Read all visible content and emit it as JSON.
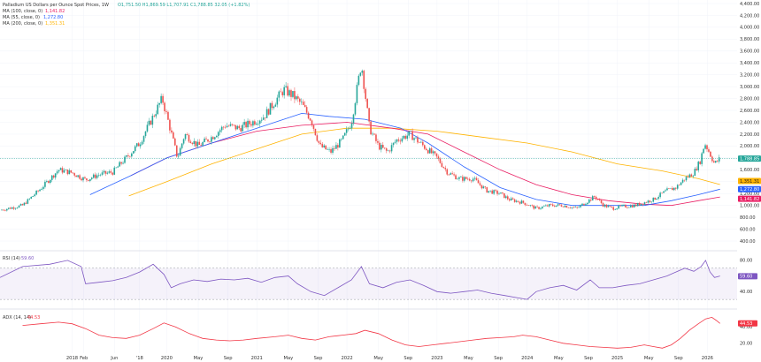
{
  "header": {
    "title": "Palladium US Dollars per Ounce Spot Prices, 1W",
    "ohlc_text": "O1,751.50  H1,869.59  L1,707.91  C1,788.85  32.05 (+1.82%)",
    "ma100_label": "MA (100, close, 0)",
    "ma100_value": "1,141.82",
    "ma55_label": "MA (55, close, 0)",
    "ma55_value": "1,272.80",
    "ma200_label": "MA (200, close, 0)",
    "ma200_value": "1,351.31"
  },
  "colors": {
    "up": "#26a69a",
    "down": "#ef5350",
    "ma100": "#e91e63",
    "ma55": "#2962ff",
    "ma200": "#ffb300",
    "rsi": "#7e57c2",
    "adx": "#f23645",
    "price_line": "#26a69a"
  },
  "badges": {
    "price": "1,788.85",
    "ma200": "1,351.31",
    "ma55": "1,272.80",
    "ma100": "1,141.82",
    "rsi": "59.60",
    "adx": "44.53"
  },
  "rsi_panel": {
    "label": "RSI (14)",
    "value": "59.60",
    "band_upper": 70,
    "band_lower": 30,
    "ticks": [
      "80.00",
      "60.00",
      "40.00"
    ]
  },
  "adx_panel": {
    "label": "ADX (14, 14)",
    "value": "44.53",
    "ticks": [
      "40.00",
      "20.00"
    ]
  },
  "chart_data": {
    "type": "candlestick",
    "title": "Palladium US Dollars per Ounce Spot Prices, 1W",
    "ylim": [
      400,
      4400
    ],
    "y_ticks": [
      "4,400.00",
      "4,200.00",
      "4,000.00",
      "3,800.00",
      "3,600.00",
      "3,400.00",
      "3,200.00",
      "3,000.00",
      "2,800.00",
      "2,600.00",
      "2,400.00",
      "2,200.00",
      "2,000.00",
      "1,800.00",
      "1,600.00",
      "1,400.00",
      "1,200.00",
      "1,000.00",
      "800.00",
      "600.00",
      "400.00"
    ],
    "x_ticks": [
      "2018",
      "Feb",
      "Jun",
      "'18",
      "2020",
      "May",
      "Sep",
      "2021",
      "May",
      "Sep",
      "2022",
      "May",
      "Sep",
      "2023",
      "May",
      "Sep",
      "2024",
      "May",
      "Sep",
      "2025",
      "May",
      "Sep",
      "2026"
    ],
    "x_tick_dates": [
      2018.95,
      2019.08,
      2019.42,
      2019.7,
      2020.0,
      2020.35,
      2020.68,
      2021.0,
      2021.35,
      2021.68,
      2022.0,
      2022.35,
      2022.68,
      2023.0,
      2023.35,
      2023.68,
      2024.0,
      2024.35,
      2024.68,
      2025.0,
      2025.35,
      2025.68,
      2026.0
    ],
    "x_range": [
      2018.15,
      2026.33
    ],
    "price_anchors": [
      [
        2018.15,
        920
      ],
      [
        2018.4,
        1000
      ],
      [
        2018.6,
        1280
      ],
      [
        2018.8,
        1600
      ],
      [
        2018.95,
        1550
      ],
      [
        2019.1,
        1430
      ],
      [
        2019.25,
        1520
      ],
      [
        2019.4,
        1560
      ],
      [
        2019.55,
        1800
      ],
      [
        2019.7,
        2050
      ],
      [
        2019.85,
        2500
      ],
      [
        2019.95,
        2800
      ],
      [
        2020.02,
        2400
      ],
      [
        2020.12,
        1800
      ],
      [
        2020.2,
        2200
      ],
      [
        2020.35,
        2000
      ],
      [
        2020.5,
        2150
      ],
      [
        2020.65,
        2350
      ],
      [
        2020.8,
        2300
      ],
      [
        2020.95,
        2400
      ],
      [
        2021.08,
        2500
      ],
      [
        2021.2,
        2750
      ],
      [
        2021.3,
        2950
      ],
      [
        2021.4,
        2850
      ],
      [
        2021.5,
        2700
      ],
      [
        2021.6,
        2450
      ],
      [
        2021.7,
        2000
      ],
      [
        2021.82,
        1900
      ],
      [
        2021.95,
        2100
      ],
      [
        2022.05,
        2400
      ],
      [
        2022.16,
        3400
      ],
      [
        2022.25,
        2300
      ],
      [
        2022.35,
        2000
      ],
      [
        2022.45,
        1900
      ],
      [
        2022.55,
        2100
      ],
      [
        2022.7,
        2200
      ],
      [
        2022.85,
        2000
      ],
      [
        2023.0,
        1800
      ],
      [
        2023.12,
        1550
      ],
      [
        2023.25,
        1450
      ],
      [
        2023.4,
        1450
      ],
      [
        2023.55,
        1250
      ],
      [
        2023.7,
        1200
      ],
      [
        2023.8,
        1100
      ],
      [
        2023.95,
        1050
      ],
      [
        2024.1,
        950
      ],
      [
        2024.25,
        1000
      ],
      [
        2024.4,
        1000
      ],
      [
        2024.55,
        950
      ],
      [
        2024.65,
        1050
      ],
      [
        2024.75,
        1150
      ],
      [
        2024.85,
        1000
      ],
      [
        2024.95,
        950
      ],
      [
        2025.05,
        980
      ],
      [
        2025.2,
        1000
      ],
      [
        2025.3,
        1050
      ],
      [
        2025.4,
        1100
      ],
      [
        2025.55,
        1250
      ],
      [
        2025.65,
        1300
      ],
      [
        2025.75,
        1450
      ],
      [
        2025.85,
        1550
      ],
      [
        2025.92,
        1750
      ],
      [
        2025.97,
        2050
      ],
      [
        2026.02,
        1900
      ],
      [
        2026.08,
        1700
      ],
      [
        2026.14,
        1789
      ]
    ],
    "ma200": [
      [
        2019.58,
        1160
      ],
      [
        2020.0,
        1400
      ],
      [
        2020.5,
        1700
      ],
      [
        2021.0,
        1950
      ],
      [
        2021.5,
        2200
      ],
      [
        2022.0,
        2300
      ],
      [
        2022.5,
        2300
      ],
      [
        2023.0,
        2250
      ],
      [
        2023.5,
        2150
      ],
      [
        2024.0,
        2050
      ],
      [
        2024.5,
        1900
      ],
      [
        2025.0,
        1700
      ],
      [
        2025.5,
        1580
      ],
      [
        2025.9,
        1450
      ],
      [
        2026.14,
        1351
      ]
    ],
    "ma55": [
      [
        2019.15,
        1180
      ],
      [
        2019.6,
        1500
      ],
      [
        2020.0,
        1800
      ],
      [
        2020.5,
        2050
      ],
      [
        2021.0,
        2300
      ],
      [
        2021.5,
        2550
      ],
      [
        2021.8,
        2500
      ],
      [
        2022.2,
        2450
      ],
      [
        2022.6,
        2300
      ],
      [
        2022.9,
        2050
      ],
      [
        2023.3,
        1650
      ],
      [
        2023.7,
        1300
      ],
      [
        2024.1,
        1100
      ],
      [
        2024.5,
        1000
      ],
      [
        2024.9,
        1000
      ],
      [
        2025.3,
        1000
      ],
      [
        2025.6,
        1080
      ],
      [
        2025.9,
        1180
      ],
      [
        2026.14,
        1273
      ]
    ],
    "ma100": [
      [
        2019.6,
        1500
      ],
      [
        2020.0,
        1800
      ],
      [
        2020.5,
        2050
      ],
      [
        2021.0,
        2250
      ],
      [
        2021.5,
        2350
      ],
      [
        2022.0,
        2400
      ],
      [
        2022.5,
        2300
      ],
      [
        2022.9,
        2200
      ],
      [
        2023.3,
        1900
      ],
      [
        2023.7,
        1600
      ],
      [
        2024.1,
        1350
      ],
      [
        2024.5,
        1180
      ],
      [
        2024.9,
        1080
      ],
      [
        2025.3,
        1020
      ],
      [
        2025.6,
        1000
      ],
      [
        2025.9,
        1080
      ],
      [
        2026.14,
        1142
      ]
    ],
    "rsi_ylim": [
      20,
      90
    ],
    "rsi": [
      [
        2018.15,
        58
      ],
      [
        2018.4,
        72
      ],
      [
        2018.7,
        75
      ],
      [
        2018.9,
        80
      ],
      [
        2019.05,
        72
      ],
      [
        2019.1,
        50
      ],
      [
        2019.25,
        52
      ],
      [
        2019.4,
        54
      ],
      [
        2019.55,
        58
      ],
      [
        2019.7,
        65
      ],
      [
        2019.85,
        75
      ],
      [
        2019.97,
        62
      ],
      [
        2020.05,
        45
      ],
      [
        2020.15,
        50
      ],
      [
        2020.3,
        55
      ],
      [
        2020.45,
        53
      ],
      [
        2020.6,
        56
      ],
      [
        2020.75,
        55
      ],
      [
        2020.9,
        57
      ],
      [
        2021.05,
        52
      ],
      [
        2021.2,
        58
      ],
      [
        2021.35,
        60
      ],
      [
        2021.45,
        50
      ],
      [
        2021.6,
        40
      ],
      [
        2021.75,
        35
      ],
      [
        2021.9,
        45
      ],
      [
        2022.05,
        55
      ],
      [
        2022.16,
        72
      ],
      [
        2022.25,
        50
      ],
      [
        2022.4,
        45
      ],
      [
        2022.55,
        52
      ],
      [
        2022.7,
        55
      ],
      [
        2022.85,
        48
      ],
      [
        2023.0,
        40
      ],
      [
        2023.15,
        38
      ],
      [
        2023.3,
        40
      ],
      [
        2023.45,
        42
      ],
      [
        2023.6,
        38
      ],
      [
        2023.75,
        35
      ],
      [
        2023.9,
        32
      ],
      [
        2024.0,
        30
      ],
      [
        2024.1,
        40
      ],
      [
        2024.25,
        45
      ],
      [
        2024.4,
        48
      ],
      [
        2024.55,
        42
      ],
      [
        2024.7,
        55
      ],
      [
        2024.8,
        45
      ],
      [
        2024.95,
        45
      ],
      [
        2025.1,
        48
      ],
      [
        2025.25,
        50
      ],
      [
        2025.4,
        55
      ],
      [
        2025.55,
        60
      ],
      [
        2025.65,
        65
      ],
      [
        2025.75,
        70
      ],
      [
        2025.85,
        66
      ],
      [
        2025.93,
        72
      ],
      [
        2025.98,
        80
      ],
      [
        2026.03,
        65
      ],
      [
        2026.08,
        58
      ],
      [
        2026.14,
        60
      ]
    ],
    "adx_ylim": [
      10,
      60
    ],
    "adx": [
      [
        2018.4,
        42
      ],
      [
        2018.6,
        44
      ],
      [
        2018.8,
        46
      ],
      [
        2018.95,
        44
      ],
      [
        2019.1,
        38
      ],
      [
        2019.25,
        30
      ],
      [
        2019.4,
        27
      ],
      [
        2019.55,
        26
      ],
      [
        2019.7,
        30
      ],
      [
        2019.85,
        38
      ],
      [
        2019.97,
        45
      ],
      [
        2020.1,
        40
      ],
      [
        2020.25,
        32
      ],
      [
        2020.4,
        26
      ],
      [
        2020.55,
        24
      ],
      [
        2020.7,
        23
      ],
      [
        2020.85,
        24
      ],
      [
        2021.0,
        26
      ],
      [
        2021.2,
        28
      ],
      [
        2021.35,
        30
      ],
      [
        2021.5,
        26
      ],
      [
        2021.65,
        24
      ],
      [
        2021.8,
        28
      ],
      [
        2021.95,
        30
      ],
      [
        2022.1,
        32
      ],
      [
        2022.2,
        36
      ],
      [
        2022.35,
        32
      ],
      [
        2022.5,
        24
      ],
      [
        2022.65,
        18
      ],
      [
        2022.8,
        16
      ],
      [
        2022.95,
        18
      ],
      [
        2023.1,
        20
      ],
      [
        2023.25,
        22
      ],
      [
        2023.4,
        24
      ],
      [
        2023.55,
        26
      ],
      [
        2023.7,
        27
      ],
      [
        2023.85,
        28
      ],
      [
        2023.95,
        30
      ],
      [
        2024.1,
        28
      ],
      [
        2024.25,
        24
      ],
      [
        2024.4,
        20
      ],
      [
        2024.55,
        18
      ],
      [
        2024.7,
        16
      ],
      [
        2024.85,
        15
      ],
      [
        2025.0,
        14
      ],
      [
        2025.15,
        15
      ],
      [
        2025.3,
        18
      ],
      [
        2025.4,
        16
      ],
      [
        2025.5,
        14
      ],
      [
        2025.6,
        18
      ],
      [
        2025.7,
        26
      ],
      [
        2025.8,
        36
      ],
      [
        2025.9,
        44
      ],
      [
        2025.98,
        50
      ],
      [
        2026.05,
        52
      ],
      [
        2026.1,
        48
      ],
      [
        2026.14,
        44.5
      ]
    ]
  }
}
